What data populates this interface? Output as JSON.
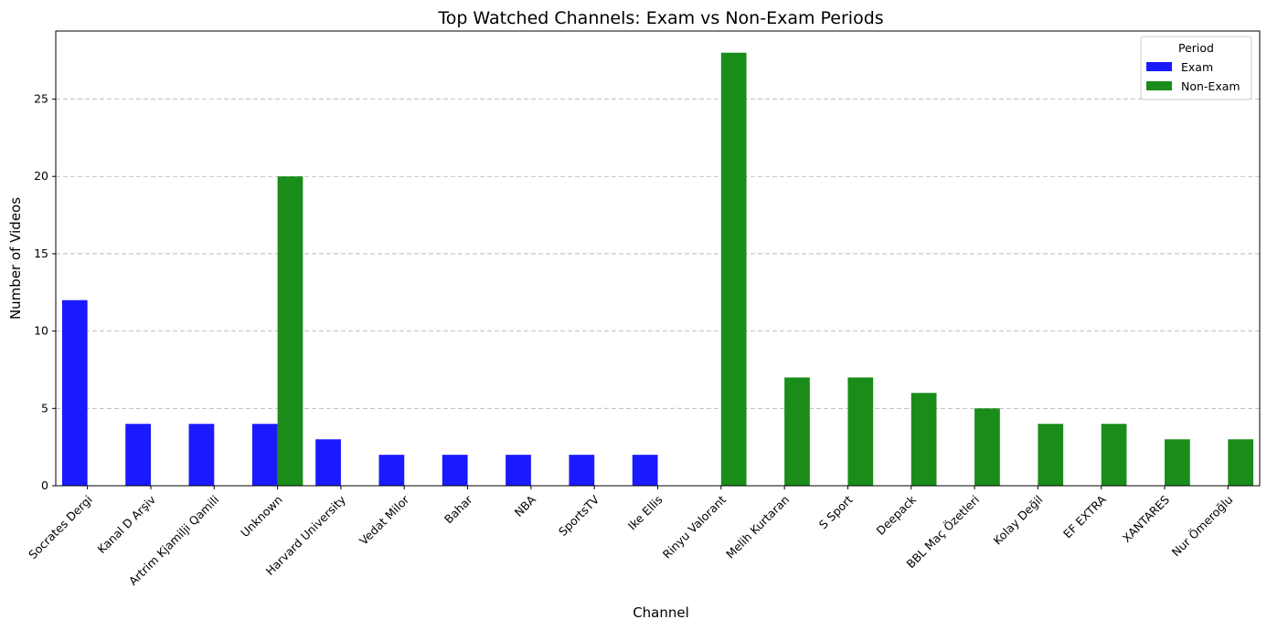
{
  "chart_data": {
    "type": "bar",
    "title": "Top Watched Channels: Exam vs Non-Exam Periods",
    "xlabel": "Channel",
    "ylabel": "Number of Videos",
    "categories": [
      "Socrates Dergi",
      "Kanal D Arşiv",
      "Artrim Kjamilji Qamili",
      "Unknown",
      "Harvard University",
      "Vedat Milor",
      "Bahar",
      "NBA",
      "SportsTV",
      "Ike Ellis",
      "Rinyu Valorant",
      "Melih Kurtaran",
      "S Sport",
      "Deepack",
      "BBL Maç Özetleri",
      "Kolay Değil",
      "EF EXTRA",
      "XANTARES",
      "Nur Ömeroğlu"
    ],
    "series": [
      {
        "name": "Exam",
        "color": "#1a1aff",
        "values": [
          12,
          4,
          4,
          4,
          3,
          2,
          2,
          2,
          2,
          2,
          0,
          0,
          0,
          0,
          0,
          0,
          0,
          0,
          0
        ]
      },
      {
        "name": "Non-Exam",
        "color": "#1a8c1a",
        "values": [
          0,
          0,
          0,
          20,
          0,
          0,
          0,
          0,
          0,
          0,
          28,
          7,
          7,
          6,
          5,
          4,
          4,
          3,
          3
        ]
      }
    ],
    "ylim": [
      0,
      29.4
    ],
    "yticks": [
      0,
      5,
      10,
      15,
      20,
      25
    ],
    "grid": "y-dashed",
    "legend_title": "Period",
    "legend_position": "top-right"
  }
}
